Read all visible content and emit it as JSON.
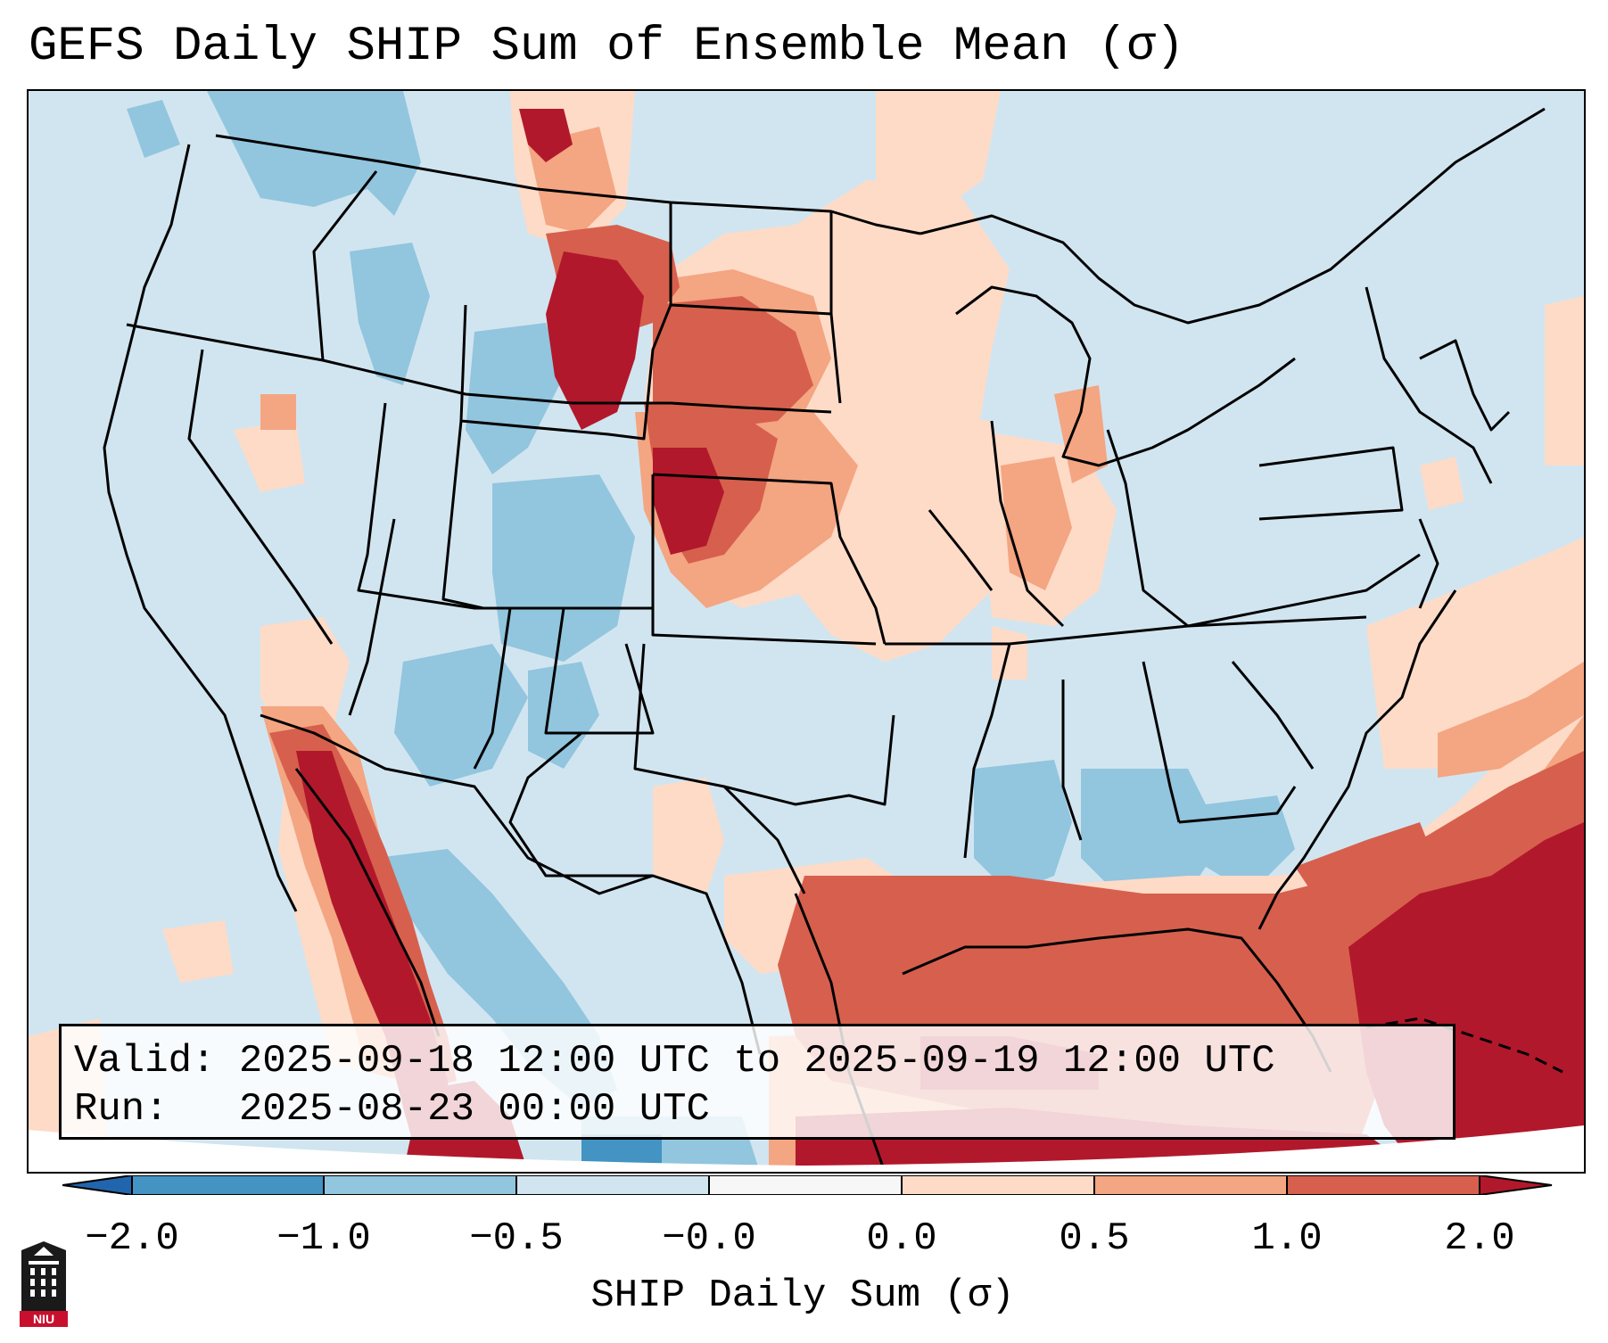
{
  "title": "GEFS Daily SHIP Sum of Ensemble Mean (σ)",
  "info": {
    "valid_label": "Valid:",
    "valid_value": "2025-09-18 12:00 UTC to 2025-09-19 12:00 UTC",
    "run_label": "Run:",
    "run_value": "2025-08-23 00:00 UTC"
  },
  "colorbar": {
    "label": "SHIP Daily Sum (σ)",
    "ticks": [
      "−2.0",
      "−1.0",
      "−0.5",
      "−0.0",
      "0.0",
      "0.5",
      "1.0",
      "2.0"
    ],
    "bins": [
      {
        "range": "<-2.0",
        "color": "#2166ac"
      },
      {
        "range": "-2.0 to -1.0",
        "color": "#4393c3"
      },
      {
        "range": "-1.0 to -0.5",
        "color": "#92c5de"
      },
      {
        "range": "-0.5 to -0.0",
        "color": "#d1e5f0"
      },
      {
        "range": "-0.0 to 0.0",
        "color": "#f7f7f7"
      },
      {
        "range": "0.0 to 0.5",
        "color": "#fddbc7"
      },
      {
        "range": "0.5 to 1.0",
        "color": "#f4a582"
      },
      {
        "range": "1.0 to 2.0",
        "color": "#d6604d"
      },
      {
        "range": ">2.0",
        "color": "#b2182b"
      }
    ]
  },
  "logo": {
    "text": "NIU",
    "name": "Northern Illinois University"
  }
}
